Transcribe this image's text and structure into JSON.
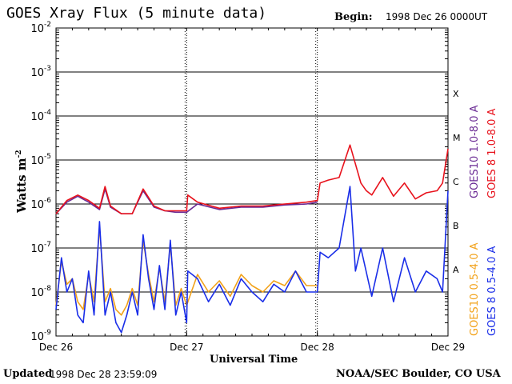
{
  "header": {
    "title": "GOES Xray Flux (5 minute data)",
    "begin_label": "Begin:",
    "begin_value": "1998 Dec 26 0000UT"
  },
  "footer": {
    "updated_label": "Updated",
    "updated_value": "1998 Dec 28 23:59:09",
    "credit": "NOAA/SEC Boulder, CO USA"
  },
  "colors": {
    "goes8_long": "#e8121c",
    "goes10_long": "#6a2a94",
    "goes8_short": "#1a2ee8",
    "goes10_short": "#f2a21a"
  },
  "chart_data": {
    "type": "line",
    "title": "GOES Xray Flux (5 minute data)",
    "xlabel": "Universal Time",
    "ylabel": "Watts m",
    "ylabel_superscript": "-2",
    "yscale": "log",
    "ylim": [
      1e-09,
      0.01
    ],
    "y_ticks": [
      {
        "value": 1e-09,
        "base": "10",
        "exp": "-9"
      },
      {
        "value": 1e-08,
        "base": "10",
        "exp": "-8"
      },
      {
        "value": 1e-07,
        "base": "10",
        "exp": "-7"
      },
      {
        "value": 1e-06,
        "base": "10",
        "exp": "-6"
      },
      {
        "value": 1e-05,
        "base": "10",
        "exp": "-5"
      },
      {
        "value": 0.0001,
        "base": "10",
        "exp": "-4"
      },
      {
        "value": 0.001,
        "base": "10",
        "exp": "-3"
      },
      {
        "value": 0.01,
        "base": "10",
        "exp": "-2"
      }
    ],
    "x_ticks": [
      "Dec 26",
      "Dec 27",
      "Dec 28",
      "Dec 29"
    ],
    "grid": true,
    "flare_classes": [
      {
        "label": "A",
        "value": 3.2e-08
      },
      {
        "label": "B",
        "value": 3.2e-07
      },
      {
        "label": "C",
        "value": 3.2e-06
      },
      {
        "label": "M",
        "value": 3.2e-05
      },
      {
        "label": "X",
        "value": 0.00032
      }
    ],
    "legend": [
      "GOES10 1.0-8.0 A",
      "GOES 8 1.0-8.0 A",
      "GOES10 0.5-4.0 A",
      "GOES 8 0.5-4.0 A"
    ],
    "legend_position": "right",
    "x_unit": "hours since 1998 Dec 26 00:00 UT",
    "series": [
      {
        "name": "GOES 8 1.0-8.0 A",
        "x": [
          0,
          2,
          4,
          6,
          8,
          9,
          10,
          12,
          14,
          16,
          18,
          20,
          22,
          24,
          24.2,
          26,
          30,
          34,
          38,
          42,
          46,
          48,
          48.5,
          50,
          52,
          54,
          56,
          57,
          58,
          60,
          62,
          64,
          66,
          68,
          70,
          71,
          72
        ],
        "y": [
          6e-07,
          1.2e-06,
          1.6e-06,
          1.2e-06,
          8e-07,
          2.5e-06,
          9e-07,
          6e-07,
          6e-07,
          2.2e-06,
          9e-07,
          7e-07,
          7e-07,
          7e-07,
          1.6e-06,
          1.1e-06,
          8e-07,
          9e-07,
          9e-07,
          1e-06,
          1.1e-06,
          1.2e-06,
          3e-06,
          3.5e-06,
          4e-06,
          2.2e-05,
          3e-06,
          2e-06,
          1.6e-06,
          4e-06,
          1.5e-06,
          3e-06,
          1.3e-06,
          1.8e-06,
          2e-06,
          3e-06,
          1.8e-05
        ]
      },
      {
        "name": "GOES10 1.0-8.0 A",
        "x": [
          0,
          2,
          4,
          6,
          8,
          9,
          10,
          12,
          14,
          16,
          18,
          20,
          22,
          24,
          26,
          30,
          34,
          38,
          42,
          46,
          48
        ],
        "y": [
          6e-07,
          1.1e-06,
          1.5e-06,
          1.1e-06,
          7.5e-07,
          2.2e-06,
          8.5e-07,
          6e-07,
          6e-07,
          2e-06,
          8.5e-07,
          7e-07,
          6.5e-07,
          6.5e-07,
          1e-06,
          7.5e-07,
          8.5e-07,
          8.5e-07,
          9.5e-07,
          1e-06,
          1.1e-06
        ]
      },
      {
        "name": "GOES 8 0.5-4.0 A",
        "x": [
          0,
          1,
          2,
          3,
          4,
          5,
          6,
          7,
          8,
          9,
          10,
          11,
          12,
          13,
          14,
          15,
          16,
          17,
          18,
          19,
          20,
          21,
          22,
          23,
          24,
          24.2,
          26,
          28,
          30,
          32,
          34,
          36,
          38,
          40,
          42,
          44,
          46,
          48,
          48.5,
          50,
          52,
          54,
          55,
          56,
          58,
          60,
          62,
          64,
          66,
          68,
          70,
          71,
          72
        ],
        "y": [
          4e-09,
          6e-08,
          1e-08,
          2e-08,
          3e-09,
          2e-09,
          3e-08,
          3e-09,
          4e-07,
          3e-09,
          1e-08,
          2e-09,
          1.2e-09,
          3e-09,
          1e-08,
          3e-09,
          2e-07,
          2e-08,
          4e-09,
          4e-08,
          4e-09,
          1.5e-07,
          3e-09,
          1e-08,
          2e-09,
          3e-08,
          2e-08,
          6e-09,
          1.5e-08,
          5e-09,
          2e-08,
          1e-08,
          6e-09,
          1.5e-08,
          1e-08,
          3e-08,
          1e-08,
          1e-08,
          8e-08,
          6e-08,
          1e-07,
          2.5e-06,
          3e-08,
          1e-07,
          8e-09,
          1e-07,
          6e-09,
          6e-08,
          1e-08,
          3e-08,
          2e-08,
          1e-08,
          2e-06
        ]
      },
      {
        "name": "GOES10 0.5-4.0 A",
        "x": [
          0,
          1,
          2,
          3,
          4,
          5,
          6,
          7,
          8,
          9,
          10,
          11,
          12,
          13,
          14,
          15,
          16,
          17,
          18,
          19,
          20,
          21,
          22,
          23,
          24,
          26,
          28,
          30,
          32,
          34,
          36,
          38,
          40,
          42,
          44,
          46,
          48
        ],
        "y": [
          5e-09,
          5e-08,
          1.5e-08,
          2e-08,
          6e-09,
          4e-09,
          2.5e-08,
          6e-09,
          3e-07,
          6e-09,
          1.2e-08,
          4e-09,
          3e-09,
          5e-09,
          1.2e-08,
          5e-09,
          1.5e-07,
          2.5e-08,
          6e-09,
          3.5e-08,
          6e-09,
          1.2e-07,
          5e-09,
          1.2e-08,
          5e-09,
          2.5e-08,
          1e-08,
          1.8e-08,
          8e-09,
          2.5e-08,
          1.4e-08,
          1e-08,
          1.8e-08,
          1.4e-08,
          3e-08,
          1.4e-08,
          1.4e-08
        ]
      }
    ]
  }
}
